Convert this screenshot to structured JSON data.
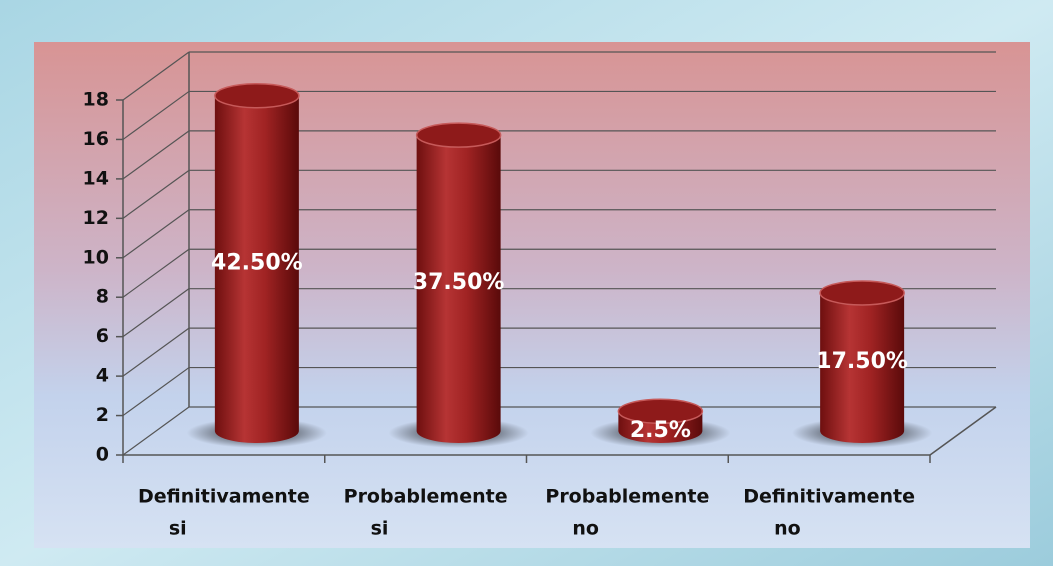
{
  "chart_data": {
    "type": "bar3d",
    "categories": [
      [
        "Definitivamente",
        "si"
      ],
      [
        "Probablemente",
        "si"
      ],
      [
        "Probablemente",
        "no"
      ],
      [
        "Definitivamente",
        "no"
      ]
    ],
    "values": [
      17,
      15,
      1,
      7
    ],
    "point_labels": [
      "42.50%",
      "37.50%",
      "2.5%",
      "17.50%"
    ],
    "color": "#9b1c1c",
    "ylim": [
      0,
      18
    ],
    "yticks": [
      0,
      2,
      4,
      6,
      8,
      10,
      12,
      14,
      16,
      18
    ],
    "grid": true
  }
}
